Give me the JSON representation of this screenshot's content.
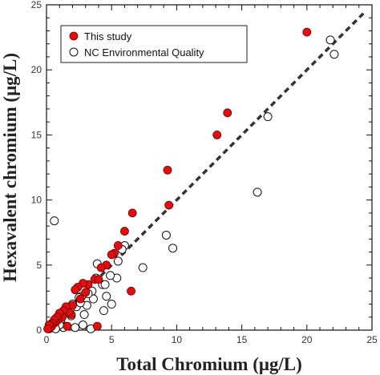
{
  "chart_data": {
    "type": "scatter",
    "xlabel": "Total Chromium (μg/L)",
    "ylabel": "Hexavalent chromium (μg/L)",
    "xlim": [
      0,
      25
    ],
    "ylim": [
      0,
      25
    ],
    "xticks": [
      "0",
      "5",
      "10",
      "15",
      "20",
      "25"
    ],
    "yticks": [
      "0",
      "5",
      "10",
      "15",
      "20",
      "25"
    ],
    "grid": false,
    "legend_position": "top-left",
    "reference_line": {
      "style": "dashed",
      "x": [
        0,
        24.5
      ],
      "y": [
        0,
        24.5
      ]
    },
    "series": [
      {
        "name": "This study",
        "marker": "filled-circle",
        "color": "#e01010",
        "points": [
          [
            20.0,
            22.9
          ],
          [
            13.9,
            16.7
          ],
          [
            13.1,
            15.0
          ],
          [
            9.3,
            12.3
          ],
          [
            9.4,
            9.6
          ],
          [
            6.6,
            9.0
          ],
          [
            6.5,
            3.0
          ],
          [
            6.0,
            7.6
          ],
          [
            5.5,
            6.5
          ],
          [
            5.2,
            5.9
          ],
          [
            5.0,
            5.8
          ],
          [
            4.6,
            5.0
          ],
          [
            4.2,
            4.8
          ],
          [
            3.9,
            0.3
          ],
          [
            3.7,
            3.9
          ],
          [
            3.2,
            3.5
          ],
          [
            2.8,
            3.6
          ],
          [
            2.4,
            3.3
          ],
          [
            2.2,
            3.1
          ],
          [
            2.0,
            1.9
          ],
          [
            1.9,
            1.2
          ],
          [
            1.7,
            1.4
          ],
          [
            1.5,
            1.8
          ],
          [
            1.3,
            1.5
          ],
          [
            1.2,
            1.0
          ],
          [
            1.0,
            1.3
          ],
          [
            0.9,
            0.8
          ],
          [
            0.8,
            1.0
          ],
          [
            0.7,
            0.6
          ],
          [
            0.6,
            0.8
          ],
          [
            0.5,
            0.5
          ],
          [
            0.4,
            0.3
          ],
          [
            0.3,
            0.2
          ],
          [
            0.2,
            0.4
          ],
          [
            0.1,
            0.1
          ],
          [
            2.6,
            2.4
          ],
          [
            3.0,
            2.9
          ],
          [
            1.6,
            0.3
          ],
          [
            4.0,
            3.9
          ]
        ]
      },
      {
        "name": "NC Environmental Quality",
        "marker": "open-circle",
        "color": "#111111",
        "points": [
          [
            21.8,
            22.3
          ],
          [
            22.1,
            21.2
          ],
          [
            17.0,
            16.4
          ],
          [
            16.2,
            10.6
          ],
          [
            9.2,
            7.3
          ],
          [
            9.7,
            6.3
          ],
          [
            7.4,
            4.8
          ],
          [
            0.6,
            8.4
          ],
          [
            6.0,
            6.5
          ],
          [
            5.8,
            6.2
          ],
          [
            5.5,
            5.3
          ],
          [
            5.4,
            4.0
          ],
          [
            4.9,
            4.2
          ],
          [
            5.0,
            2.0
          ],
          [
            4.6,
            2.6
          ],
          [
            4.3,
            3.5
          ],
          [
            4.4,
            1.5
          ],
          [
            3.9,
            5.1
          ],
          [
            3.6,
            2.4
          ],
          [
            3.5,
            3.0
          ],
          [
            3.2,
            2.8
          ],
          [
            3.1,
            1.9
          ],
          [
            2.9,
            1.2
          ],
          [
            2.7,
            2.6
          ],
          [
            2.5,
            2.5
          ],
          [
            2.3,
            1.8
          ],
          [
            2.0,
            2.0
          ],
          [
            1.8,
            1.6
          ],
          [
            1.6,
            1.5
          ],
          [
            1.4,
            1.3
          ],
          [
            1.2,
            1.1
          ],
          [
            1.1,
            0.8
          ],
          [
            0.9,
            0.6
          ],
          [
            0.8,
            0.9
          ],
          [
            0.6,
            0.4
          ],
          [
            0.5,
            0.2
          ],
          [
            0.4,
            0.5
          ],
          [
            0.3,
            0.3
          ],
          [
            0.2,
            0.1
          ],
          [
            1.5,
            0.3
          ],
          [
            2.2,
            0.2
          ],
          [
            2.8,
            0.4
          ],
          [
            3.4,
            0.1
          ],
          [
            4.5,
            3.5
          ],
          [
            3.8,
            4.0
          ],
          [
            2.6,
            2.1
          ],
          [
            1.9,
            1.1
          ],
          [
            1.3,
            0.2
          ],
          [
            1.0,
            0.4
          ],
          [
            0.7,
            0.1
          ]
        ]
      }
    ]
  }
}
